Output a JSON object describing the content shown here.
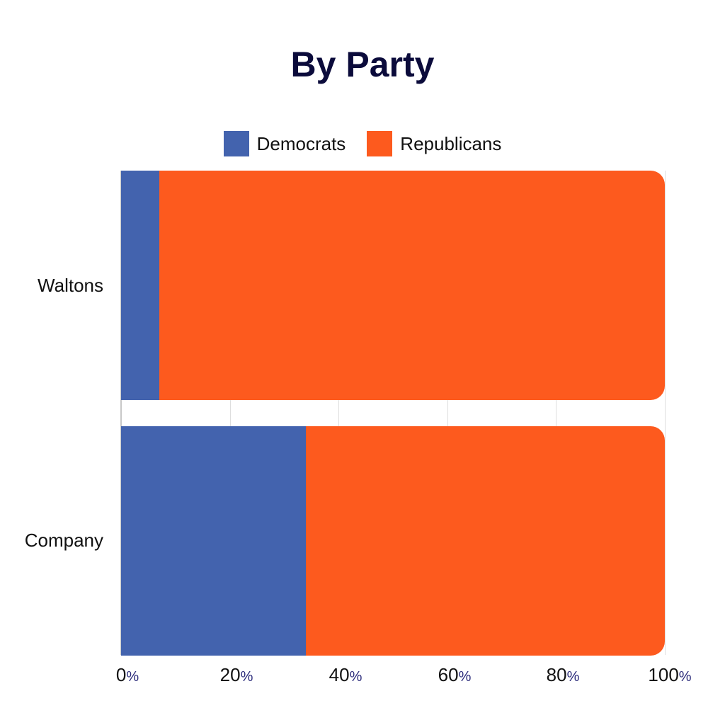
{
  "chart_data": {
    "type": "bar",
    "orientation": "horizontal",
    "stacked": true,
    "normalized": true,
    "title": "By Party",
    "xlabel": "",
    "ylabel": "",
    "xlim": [
      0,
      100
    ],
    "x_ticks": [
      "0%",
      "20%",
      "40%",
      "60%",
      "80%",
      "100%"
    ],
    "grid": true,
    "legend_position": "top",
    "categories": [
      "Waltons",
      "Company"
    ],
    "series": [
      {
        "name": "Democrats",
        "color": "#4363ae",
        "values": [
          7,
          34
        ]
      },
      {
        "name": "Republicans",
        "color": "#fd5a1e",
        "values": [
          93,
          66
        ]
      }
    ]
  },
  "title": "By Party",
  "legend": [
    {
      "label": "Democrats",
      "color": "#4363ae"
    },
    {
      "label": "Republicans",
      "color": "#fd5a1e"
    }
  ],
  "y_axis": {
    "labels": [
      "Waltons",
      "Company"
    ]
  },
  "x_axis": {
    "ticks": [
      {
        "num": "0",
        "unit": "%"
      },
      {
        "num": "20",
        "unit": "%"
      },
      {
        "num": "40",
        "unit": "%"
      },
      {
        "num": "60",
        "unit": "%"
      },
      {
        "num": "80",
        "unit": "%"
      },
      {
        "num": "100",
        "unit": "%"
      }
    ]
  }
}
